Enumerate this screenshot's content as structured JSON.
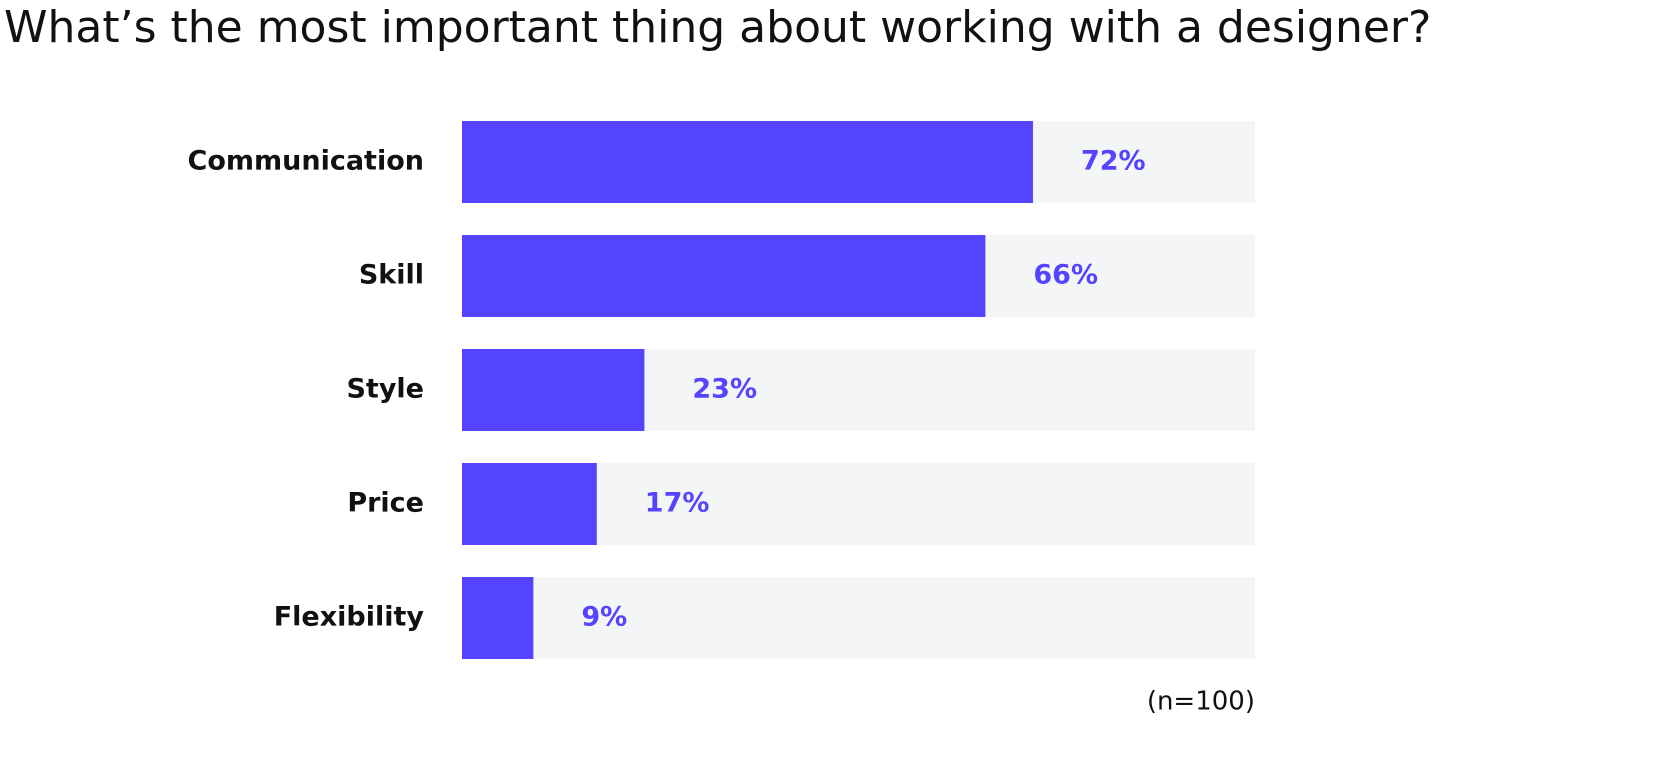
{
  "chart_data": {
    "type": "hbar",
    "title": "What’s the most important thing about working with a designer?",
    "categories": [
      "Communication",
      "Skill",
      "Style",
      "Price",
      "Flexibility"
    ],
    "values": [
      72,
      66,
      23,
      17,
      9
    ],
    "value_labels": [
      "72%",
      "66%",
      "23%",
      "17%",
      "9%"
    ],
    "color": "#5544ff",
    "track_color": "#f4f5f7",
    "xlim": [
      0,
      100
    ],
    "note": "(n=100)"
  }
}
